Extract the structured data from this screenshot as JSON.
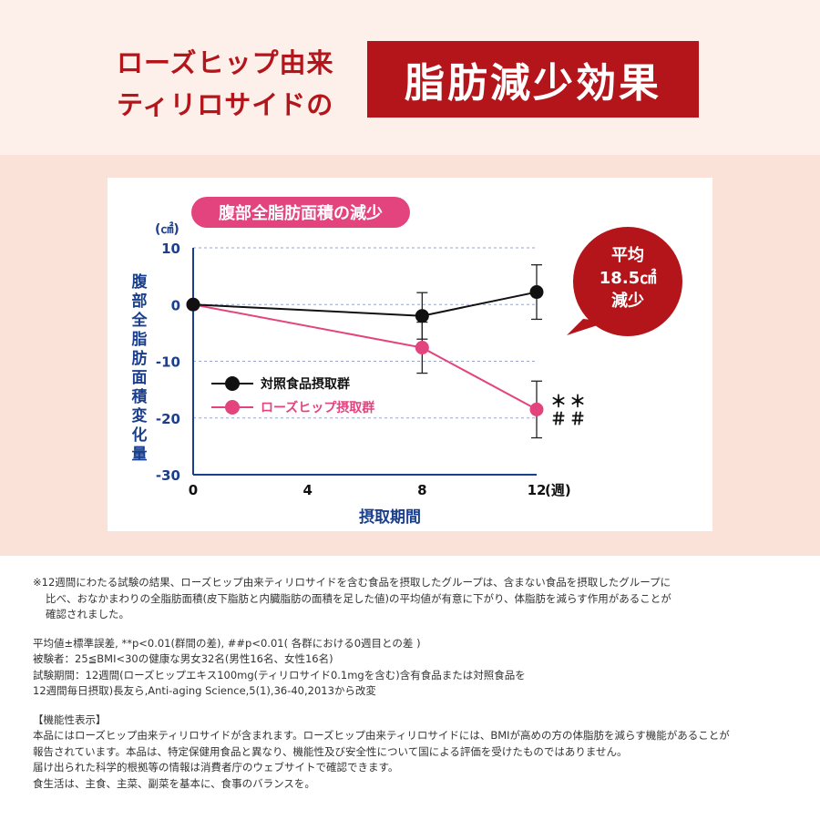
{
  "header": {
    "line1": "ローズヒップ由来",
    "line2": "ティリロサイドの",
    "highlight": "脂肪減少効果"
  },
  "colors": {
    "brand_red": "#b3151b",
    "pink": "#e3447e",
    "navy": "#1b3f8f",
    "black": "#111111"
  },
  "chart_data": {
    "type": "line",
    "title": "腹部全脂肪面積の減少",
    "ylabel": "腹部全脂肪面積変化量",
    "yunit": "(㎠)",
    "xlabel": "摂取期間",
    "xunit": "(週)",
    "x": [
      0,
      4,
      8,
      12
    ],
    "xticks": [
      "0",
      "4",
      "8",
      "12"
    ],
    "yticks": [
      "10",
      "0",
      "-10",
      "-20",
      "-30"
    ],
    "ylim": [
      -30,
      10
    ],
    "grid": "dashed horizontal",
    "series": [
      {
        "name": "対照食品摂取群",
        "color": "#111111",
        "x": [
          0,
          8,
          12
        ],
        "values": [
          0,
          -2,
          2.2
        ],
        "error": [
          0,
          4.1,
          4.8
        ]
      },
      {
        "name": "ローズヒップ摂取群",
        "color": "#e3447e",
        "x": [
          0,
          8,
          12
        ],
        "values": [
          0,
          -7.6,
          -18.5
        ],
        "error": [
          0,
          4.5,
          5
        ]
      }
    ],
    "significance_line1": "＊＊",
    "significance_line2": "＃＃",
    "callout": [
      "平均",
      "18.5㎠",
      "減少"
    ]
  },
  "notes": {
    "footnote_line1": "※12週間にわたる試験の結果、ローズヒップ由来ティリロサイドを含む食品を摂取したグループは、含まない食品を摂取したグループに",
    "footnote_line2": "比べ、おなかまわりの全脂肪面積(皮下脂肪と内臓脂肪の面積を足した値)の平均値が有意に下がり、体脂肪を減らす作用があることが",
    "footnote_line3": "確認されました。",
    "stats": "平均値±標準誤差, **p<0.01(群間の差), ##p<0.01( 各群における0週目との差 )",
    "subjects": "被験者：25≦BMI<30の健康な男女32名(男性16名、女性16名)",
    "period_line1": "試験期間：12週間(ローズヒップエキス100mg(ティリロサイド0.1mgを含む)含有食品または対照食品を",
    "period_line2": "12週間毎日摂取)長友ら,Anti-aging Science,5(1),36-40,2013から改変",
    "func_heading": "【機能性表示】",
    "func_line1": "本品にはローズヒップ由来ティリロサイドが含まれます。ローズヒップ由来ティリロサイドには、BMIが高めの方の体脂肪を減らす機能があることが",
    "func_line2": "報告されています。本品は、特定保健用食品と異なり、機能性及び安全性について国による評価を受けたものではありません。",
    "func_line3": "届け出られた科学的根拠等の情報は消費者庁のウェブサイトで確認できます。",
    "func_line4": "食生活は、主食、主菜、副菜を基本に、食事のバランスを。"
  }
}
